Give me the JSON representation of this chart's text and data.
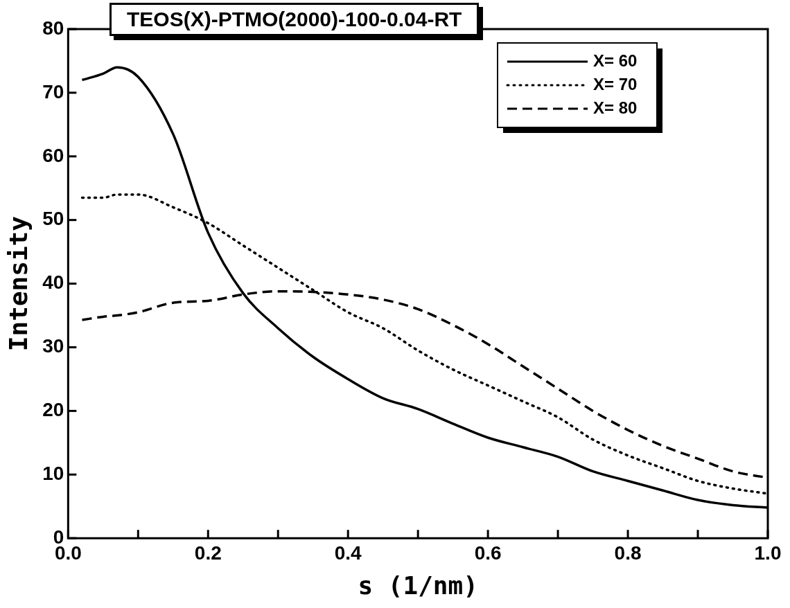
{
  "chart_data": {
    "type": "line",
    "title": "TEOS(X)-PTMO(2000)-100-0.04-RT",
    "xlabel": "s (1/nm)",
    "ylabel": "Intensity",
    "xlim": [
      0,
      1
    ],
    "ylim": [
      0,
      80
    ],
    "xticks": [
      {
        "value": 0,
        "label": "0.0"
      },
      {
        "value": 0.1,
        "label": null
      },
      {
        "value": 0.2,
        "label": "0.2"
      },
      {
        "value": 0.3,
        "label": null
      },
      {
        "value": 0.4,
        "label": "0.4"
      },
      {
        "value": 0.5,
        "label": null
      },
      {
        "value": 0.6,
        "label": "0.6"
      },
      {
        "value": 0.7,
        "label": null
      },
      {
        "value": 0.8,
        "label": "0.8"
      },
      {
        "value": 0.9,
        "label": null
      },
      {
        "value": 1,
        "label": "1.0"
      }
    ],
    "yticks": [
      0,
      10,
      20,
      30,
      40,
      50,
      60,
      70,
      80
    ],
    "grid": false,
    "legend": "top right",
    "marker": "none",
    "x": [
      0.02,
      0.05,
      0.07,
      0.1,
      0.15,
      0.2,
      0.25,
      0.3,
      0.35,
      0.4,
      0.45,
      0.5,
      0.55,
      0.6,
      0.65,
      0.7,
      0.75,
      0.8,
      0.85,
      0.9,
      0.95,
      1.0
    ],
    "series": [
      {
        "name": "X= 60",
        "color": "#000000",
        "line_style": "solid",
        "values": [
          72,
          73,
          74,
          72.5,
          63.5,
          48,
          38.5,
          33,
          28.5,
          25,
          22,
          20.3,
          18,
          15.8,
          14.3,
          12.8,
          10.5,
          9,
          7.5,
          6,
          5.2,
          4.8
        ]
      },
      {
        "name": "X= 70",
        "color": "#000000",
        "line_style": "dotted",
        "values": [
          53.5,
          53.5,
          54,
          54,
          52,
          49.5,
          46,
          42.5,
          39,
          35.5,
          33,
          29.5,
          26.5,
          24,
          21.5,
          19,
          15.5,
          13,
          11,
          9,
          7.8,
          7
        ]
      },
      {
        "name": "X= 80",
        "color": "#000000",
        "line_style": "dashed",
        "values": [
          34.3,
          34.8,
          35,
          35.5,
          37,
          37.3,
          38.3,
          38.8,
          38.7,
          38.3,
          37.5,
          36,
          33.5,
          30.5,
          27,
          23.5,
          20,
          17,
          14.5,
          12.5,
          10.5,
          9.5
        ]
      }
    ]
  }
}
